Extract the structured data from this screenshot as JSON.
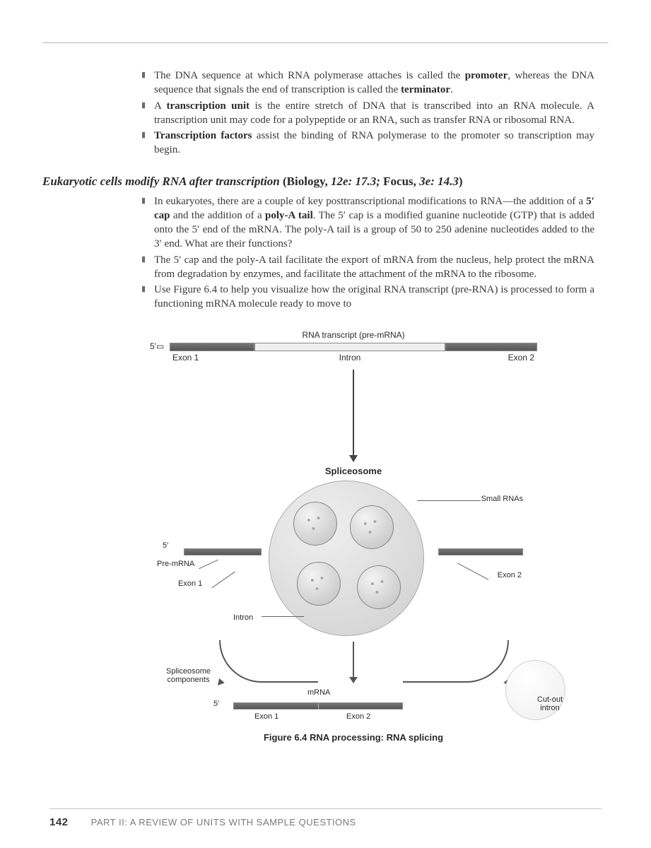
{
  "section1": {
    "bullets": [
      "The DNA sequence at which RNA polymerase attaches is called the <b>promoter</b>, whereas the DNA sequence that signals the end of transcription is called the <b>terminator</b>.",
      "A <b>transcription unit</b> is the entire stretch of DNA that is transcribed into an RNA molecule. A transcription unit may code for a polypeptide or an RNA, such as transfer RNA or ribosomal RNA.",
      "<b>Transcription factors</b> assist the binding of RNA polymerase to the promoter so transcription may begin."
    ]
  },
  "heading": {
    "italic": "Eukaryotic cells modify RNA after transcription",
    "plain": " (Biology, ",
    "ref1": "12e: 17.3;",
    "mid": " Focus, ",
    "ref2": "3e: 14.3",
    "end": ")"
  },
  "section2": {
    "bullets": [
      "In eukaryotes, there are a couple of key posttranscriptional modifications to RNA—the addition of a <b>5′ cap</b> and the addition of a <b>poly-A tail</b>. The 5′ cap is a modified guanine nucleotide (GTP) that is added onto the 5′ end of the mRNA. The poly-A tail is a group of 50 to 250 adenine nucleotides added to the 3′ end. What are their functions?",
      "The 5′ cap and the poly-A tail facilitate the export of mRNA from the nucleus, help protect the mRNA from degradation by enzymes, and facilitate the attachment of the mRNA to the ribosome.",
      "Use Figure 6.4 to help you visualize how the original RNA transcript (pre-RNA) is processed to form a functioning mRNA molecule ready to move to"
    ]
  },
  "figure": {
    "top_title": "RNA transcript (pre-mRNA)",
    "five_prime": "5′",
    "exon1": "Exon 1",
    "intron": "Intron",
    "exon2": "Exon 2",
    "spliceosome": "Spliceosome",
    "small_rnas": "Small RNAs",
    "pre_mrna": "Pre-mRNA",
    "spliceosome_components": "Spliceosome\ncomponents",
    "mrna": "mRNA",
    "cutout_intron": "Cut-out\nintron",
    "caption": "Figure 6.4   RNA processing: RNA splicing"
  },
  "footer": {
    "page": "142",
    "text": "PART II: A REVIEW OF UNITS WITH SAMPLE QUESTIONS"
  },
  "colors": {
    "text": "#3a3a3a",
    "rule": "#b8b8b8",
    "dark_seg": "#555555",
    "light_seg": "#f0f0f0"
  }
}
